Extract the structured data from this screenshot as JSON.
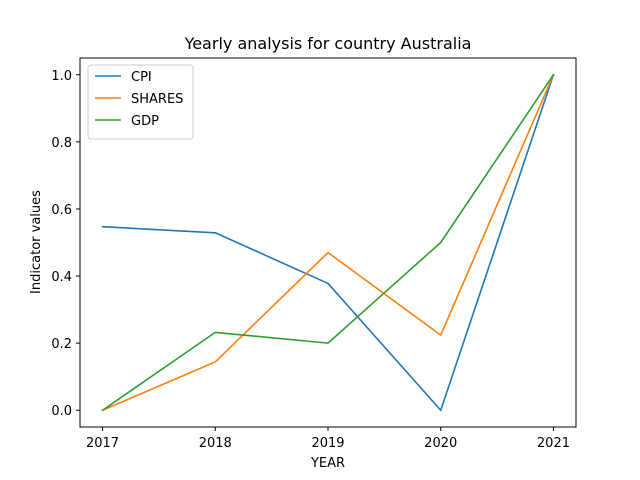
{
  "chart_data": {
    "type": "line",
    "title": "Yearly analysis for country Australia",
    "xlabel": "YEAR",
    "ylabel": "Indicator values",
    "x": [
      "2017",
      "2018",
      "2019",
      "2020",
      "2021"
    ],
    "xlim": [
      2016.8,
      2021.2
    ],
    "ylim": [
      -0.05,
      1.05
    ],
    "yticks": [
      "0.0",
      "0.2",
      "0.4",
      "0.6",
      "0.8",
      "1.0"
    ],
    "grid": false,
    "legend_position": "top-left",
    "series": [
      {
        "name": "CPI",
        "color": "#1f77b4",
        "values": [
          0.547,
          0.529,
          0.378,
          0.0,
          1.0
        ]
      },
      {
        "name": "SHARES",
        "color": "#ff7f0e",
        "values": [
          0.0,
          0.144,
          0.47,
          0.224,
          1.0
        ]
      },
      {
        "name": "GDP",
        "color": "#2ca02c",
        "values": [
          0.0,
          0.232,
          0.2,
          0.5,
          1.0
        ]
      }
    ]
  }
}
